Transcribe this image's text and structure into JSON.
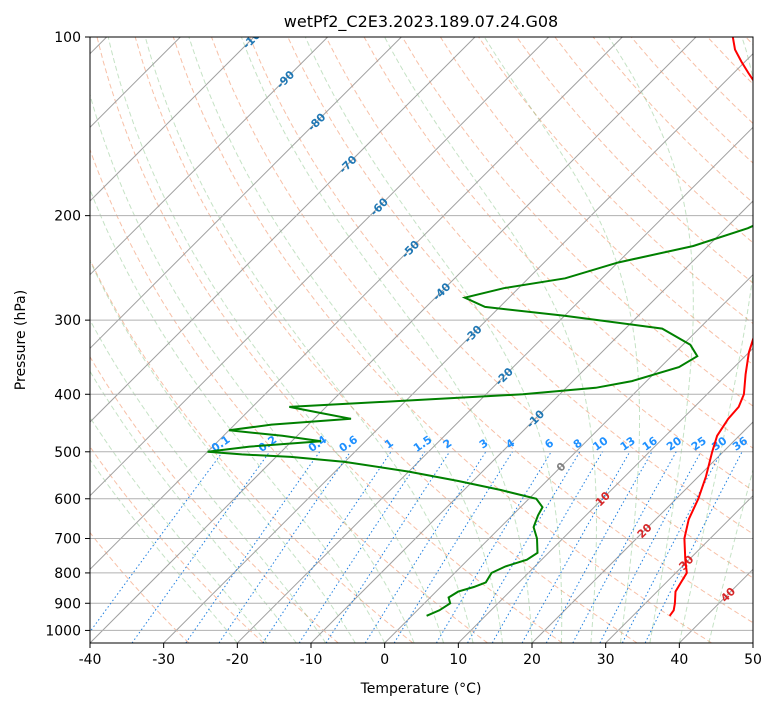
{
  "chart_data": {
    "type": "line",
    "title": "wetPf2_C2E3.2023.189.07.24.G08",
    "xlabel": "Temperature (°C)",
    "ylabel": "Pressure (hPa)",
    "xlim": [
      -40,
      50
    ],
    "ylim": [
      1050,
      100
    ],
    "y_scale": "log",
    "x_ticks": [
      -40,
      -30,
      -20,
      -10,
      0,
      10,
      20,
      30,
      40,
      50
    ],
    "y_ticks": [
      1000,
      900,
      800,
      700,
      600,
      500,
      400,
      300,
      200,
      100
    ],
    "grid": true,
    "series": [
      {
        "name": "temperature",
        "color": "#ff0000",
        "points": [
          {
            "p": 945,
            "t": 35.0
          },
          {
            "p": 925,
            "t": 34.8
          },
          {
            "p": 900,
            "t": 34.0
          },
          {
            "p": 860,
            "t": 32.5
          },
          {
            "p": 830,
            "t": 32.0
          },
          {
            "p": 800,
            "t": 31.5
          },
          {
            "p": 760,
            "t": 29.5
          },
          {
            "p": 700,
            "t": 26.5
          },
          {
            "p": 650,
            "t": 24.5
          },
          {
            "p": 600,
            "t": 23.0
          },
          {
            "p": 550,
            "t": 21.0
          },
          {
            "p": 500,
            "t": 18.5
          },
          {
            "p": 470,
            "t": 17.0
          },
          {
            "p": 440,
            "t": 16.2
          },
          {
            "p": 420,
            "t": 16.0
          },
          {
            "p": 400,
            "t": 15.0
          },
          {
            "p": 370,
            "t": 12.5
          },
          {
            "p": 340,
            "t": 10.0
          },
          {
            "p": 300,
            "t": 7.0
          },
          {
            "p": 270,
            "t": 4.5
          },
          {
            "p": 250,
            "t": 2.5
          },
          {
            "p": 220,
            "t": -1.0
          },
          {
            "p": 200,
            "t": -4.5
          },
          {
            "p": 180,
            "t": -8.5
          },
          {
            "p": 160,
            "t": -13.0
          },
          {
            "p": 150,
            "t": -16.0
          },
          {
            "p": 140,
            "t": -19.0
          },
          {
            "p": 130,
            "t": -22.0
          },
          {
            "p": 120,
            "t": -25.5
          },
          {
            "p": 115,
            "t": -28.0
          },
          {
            "p": 110,
            "t": -30.5
          },
          {
            "p": 105,
            "t": -33.0
          },
          {
            "p": 100,
            "t": -35.0
          }
        ]
      },
      {
        "name": "dewpoint",
        "color": "#008000",
        "points": [
          {
            "p": 945,
            "t": 2.0
          },
          {
            "p": 925,
            "t": 3.0
          },
          {
            "p": 900,
            "t": 3.5
          },
          {
            "p": 880,
            "t": 2.5
          },
          {
            "p": 860,
            "t": 3.0
          },
          {
            "p": 845,
            "t": 4.5
          },
          {
            "p": 830,
            "t": 5.5
          },
          {
            "p": 800,
            "t": 5.0
          },
          {
            "p": 780,
            "t": 6.0
          },
          {
            "p": 760,
            "t": 8.0
          },
          {
            "p": 740,
            "t": 8.5
          },
          {
            "p": 700,
            "t": 6.5
          },
          {
            "p": 670,
            "t": 4.5
          },
          {
            "p": 640,
            "t": 3.5
          },
          {
            "p": 620,
            "t": 3.0
          },
          {
            "p": 600,
            "t": 1.0
          },
          {
            "p": 580,
            "t": -5.0
          },
          {
            "p": 560,
            "t": -12.0
          },
          {
            "p": 540,
            "t": -20.0
          },
          {
            "p": 520,
            "t": -30.0
          },
          {
            "p": 510,
            "t": -38.0
          },
          {
            "p": 505,
            "t": -45.0
          },
          {
            "p": 500,
            "t": -50.0
          },
          {
            "p": 490,
            "t": -45.0
          },
          {
            "p": 480,
            "t": -36.0
          },
          {
            "p": 470,
            "t": -42.0
          },
          {
            "p": 460,
            "t": -50.0
          },
          {
            "p": 450,
            "t": -45.0
          },
          {
            "p": 440,
            "t": -35.0
          },
          {
            "p": 430,
            "t": -40.0
          },
          {
            "p": 420,
            "t": -45.0
          },
          {
            "p": 410,
            "t": -30.0
          },
          {
            "p": 400,
            "t": -15.0
          },
          {
            "p": 390,
            "t": -6.0
          },
          {
            "p": 380,
            "t": -2.0
          },
          {
            "p": 360,
            "t": 2.5
          },
          {
            "p": 345,
            "t": 3.5
          },
          {
            "p": 330,
            "t": 1.0
          },
          {
            "p": 310,
            "t": -5.0
          },
          {
            "p": 295,
            "t": -20.0
          },
          {
            "p": 285,
            "t": -32.0
          },
          {
            "p": 275,
            "t": -36.0
          },
          {
            "p": 265,
            "t": -32.0
          },
          {
            "p": 255,
            "t": -25.0
          },
          {
            "p": 240,
            "t": -20.0
          },
          {
            "p": 225,
            "t": -12.0
          },
          {
            "p": 210,
            "t": -7.0
          },
          {
            "p": 200,
            "t": -5.0
          },
          {
            "p": 185,
            "t": -4.0
          },
          {
            "p": 175,
            "t": -5.0
          },
          {
            "p": 165,
            "t": -7.0
          },
          {
            "p": 155,
            "t": -9.0
          },
          {
            "p": 145,
            "t": -11.0
          },
          {
            "p": 135,
            "t": -12.5
          },
          {
            "p": 125,
            "t": -15.0
          },
          {
            "p": 115,
            "t": -19.0
          },
          {
            "p": 108,
            "t": -22.0
          },
          {
            "p": 100,
            "t": -26.0
          }
        ]
      }
    ],
    "isotherm_labels": [
      -100,
      -90,
      -80,
      -70,
      -60,
      -50,
      -40,
      -30,
      -20,
      -10,
      0,
      10,
      20,
      30,
      40
    ],
    "mixing_ratio_labels": [
      "0.1",
      "0.2",
      "0.4",
      "0.6",
      "1",
      "1.5",
      "2",
      "3",
      "4",
      "6",
      "8",
      "10",
      "13",
      "16",
      "20",
      "25",
      "30",
      "36"
    ]
  }
}
